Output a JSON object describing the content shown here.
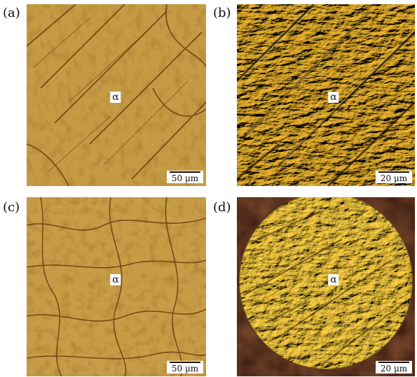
{
  "figure": {
    "phase_label": "α",
    "panels": [
      {
        "id": "a",
        "label": "(a)",
        "scale": "50 μm",
        "style": "amber"
      },
      {
        "id": "b",
        "label": "(b)",
        "scale": "20 μm",
        "style": "relief"
      },
      {
        "id": "c",
        "label": "(c)",
        "scale": "50 μm",
        "style": "amber"
      },
      {
        "id": "d",
        "label": "(d)",
        "scale": "20 μm",
        "style": "disc"
      }
    ]
  }
}
